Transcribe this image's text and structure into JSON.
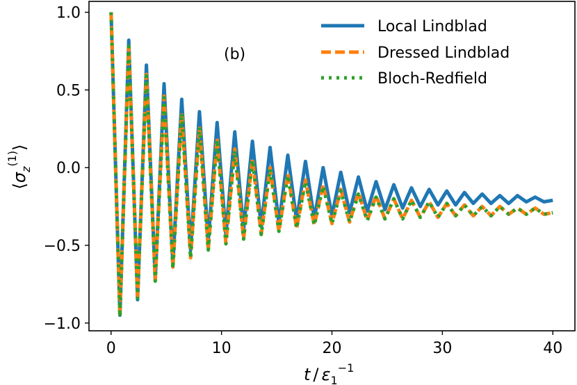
{
  "chart_data": {
    "type": "line",
    "panel_label": "(b)",
    "xlabel_math": {
      "var": "t",
      "sep": "/",
      "sym": "ε",
      "sub": "1",
      "sup": "−1"
    },
    "ylabel_math": {
      "open": "⟨",
      "sym": "σ",
      "sub": "z",
      "sup": "(1)",
      "close": "⟩"
    },
    "xlim": [
      -2,
      42
    ],
    "ylim": [
      -1.05,
      1.07
    ],
    "x_ticks": [
      0,
      10,
      20,
      30,
      40
    ],
    "y_ticks": [
      1.0,
      0.5,
      0.0,
      -0.5,
      -1.0
    ],
    "x_tick_labels": [
      "0",
      "10",
      "20",
      "30",
      "40"
    ],
    "y_tick_labels": [
      "1.0",
      "0.5",
      "0.0",
      "−0.5",
      "−1.0"
    ],
    "legend_position": "top-right",
    "grid": false,
    "series": [
      {
        "name": "Local Lindblad",
        "color": "#1f77b4",
        "style": "solid",
        "x": [
          0,
          0.8,
          1.6,
          2.4,
          3.2,
          4.0,
          4.8,
          5.6,
          6.4,
          7.2,
          8.0,
          8.8,
          9.6,
          10.4,
          11.2,
          12.0,
          12.8,
          13.6,
          14.4,
          15.2,
          16.0,
          16.8,
          17.6,
          18.4,
          19.2,
          20.0,
          20.8,
          21.6,
          22.4,
          23.2,
          24.0,
          24.8,
          25.6,
          26.4,
          27.2,
          28.0,
          28.8,
          29.6,
          30.4,
          31.2,
          32.0,
          32.8,
          33.6,
          34.4,
          35.2,
          36.0,
          36.8,
          37.6,
          38.4,
          39.2,
          40.0
        ],
        "y": [
          1.0,
          -0.95,
          0.82,
          -0.85,
          0.66,
          -0.72,
          0.54,
          -0.62,
          0.44,
          -0.53,
          0.36,
          -0.47,
          0.29,
          -0.43,
          0.23,
          -0.4,
          0.17,
          -0.38,
          0.13,
          -0.36,
          0.08,
          -0.34,
          0.04,
          -0.33,
          0.0,
          -0.31,
          -0.03,
          -0.29,
          -0.06,
          -0.28,
          -0.09,
          -0.27,
          -0.11,
          -0.26,
          -0.13,
          -0.25,
          -0.14,
          -0.24,
          -0.15,
          -0.24,
          -0.16,
          -0.23,
          -0.17,
          -0.23,
          -0.18,
          -0.23,
          -0.18,
          -0.22,
          -0.19,
          -0.22,
          -0.21
        ]
      },
      {
        "name": "Dressed Lindblad",
        "color": "#ff7f0e",
        "style": "dashed",
        "x": [
          0,
          0.8,
          1.6,
          2.4,
          3.2,
          4.0,
          4.8,
          5.6,
          6.4,
          7.2,
          8.0,
          8.8,
          9.6,
          10.4,
          11.2,
          12.0,
          12.8,
          13.6,
          14.4,
          15.2,
          16.0,
          16.8,
          17.6,
          18.4,
          19.2,
          20.0,
          20.8,
          21.6,
          22.4,
          23.2,
          24.0,
          24.8,
          25.6,
          26.4,
          27.2,
          28.0,
          28.8,
          29.6,
          30.4,
          31.2,
          32.0,
          32.8,
          33.6,
          34.4,
          35.2,
          36.0,
          36.8,
          37.6,
          38.4,
          39.2,
          40.0
        ],
        "y": [
          1.0,
          -0.96,
          0.78,
          -0.83,
          0.6,
          -0.72,
          0.46,
          -0.64,
          0.36,
          -0.58,
          0.27,
          -0.53,
          0.19,
          -0.49,
          0.12,
          -0.46,
          0.06,
          -0.43,
          0.0,
          -0.41,
          -0.04,
          -0.39,
          -0.08,
          -0.37,
          -0.11,
          -0.36,
          -0.14,
          -0.35,
          -0.16,
          -0.34,
          -0.18,
          -0.33,
          -0.2,
          -0.33,
          -0.21,
          -0.32,
          -0.22,
          -0.32,
          -0.23,
          -0.31,
          -0.24,
          -0.31,
          -0.25,
          -0.31,
          -0.25,
          -0.3,
          -0.26,
          -0.3,
          -0.26,
          -0.3,
          -0.29
        ]
      },
      {
        "name": "Bloch-Redfield",
        "color": "#2ca02c",
        "style": "dotted",
        "x": [
          0,
          0.8,
          1.6,
          2.4,
          3.2,
          4.0,
          4.8,
          5.6,
          6.4,
          7.2,
          8.0,
          8.8,
          9.6,
          10.4,
          11.2,
          12.0,
          12.8,
          13.6,
          14.4,
          15.2,
          16.0,
          16.8,
          17.6,
          18.4,
          19.2,
          20.0,
          20.8,
          21.6,
          22.4,
          23.2,
          24.0,
          24.8,
          25.6,
          26.4,
          27.2,
          28.0,
          28.8,
          29.6,
          30.4,
          31.2,
          32.0,
          32.8,
          33.6,
          34.4,
          35.2,
          36.0,
          36.8,
          37.6,
          38.4,
          39.2,
          40.0
        ],
        "y": [
          1.0,
          -0.96,
          0.78,
          -0.84,
          0.59,
          -0.73,
          0.45,
          -0.65,
          0.35,
          -0.58,
          0.26,
          -0.53,
          0.18,
          -0.49,
          0.11,
          -0.46,
          0.05,
          -0.43,
          -0.01,
          -0.41,
          -0.05,
          -0.39,
          -0.09,
          -0.37,
          -0.12,
          -0.36,
          -0.15,
          -0.35,
          -0.17,
          -0.34,
          -0.19,
          -0.33,
          -0.2,
          -0.33,
          -0.21,
          -0.32,
          -0.22,
          -0.32,
          -0.23,
          -0.31,
          -0.24,
          -0.31,
          -0.25,
          -0.31,
          -0.25,
          -0.3,
          -0.26,
          -0.3,
          -0.26,
          -0.3,
          -0.29
        ]
      }
    ]
  }
}
